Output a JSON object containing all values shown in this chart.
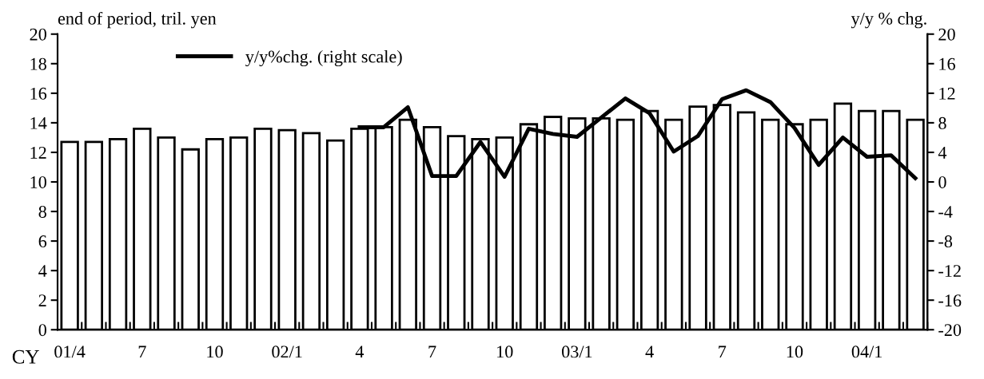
{
  "chart_data": {
    "type": "bar",
    "ylabel": "end of period, tril. yen",
    "y2label": "y/y % chg.",
    "annotations": [
      "CY"
    ],
    "categories": [
      "01/4",
      null,
      null,
      "7",
      null,
      null,
      "10",
      null,
      null,
      "02/1",
      null,
      null,
      "4",
      null,
      null,
      "7",
      null,
      null,
      "10",
      null,
      null,
      "03/1",
      null,
      null,
      "4",
      null,
      null,
      "7",
      null,
      null,
      "10",
      null,
      null,
      "04/1",
      null,
      null
    ],
    "series": [
      {
        "color": "#ffffff",
        "values": [
          12.7,
          12.7,
          12.9,
          13.6,
          13.0,
          12.2,
          12.9,
          13.0,
          13.6,
          13.5,
          13.3,
          12.8,
          13.6,
          13.7,
          14.2,
          13.7,
          13.1,
          12.9,
          13.0,
          13.9,
          14.4,
          14.3,
          14.3,
          14.2,
          14.8,
          14.2,
          15.1,
          15.2,
          14.7,
          14.2,
          13.9,
          14.2,
          15.3,
          14.8,
          14.8,
          14.2
        ]
      },
      {
        "type": "line",
        "name": "y/y%chg. (right scale)",
        "color": "#000000",
        "axis": "y2",
        "values": [
          null,
          null,
          null,
          null,
          null,
          null,
          null,
          null,
          null,
          null,
          null,
          null,
          7.4,
          7.4,
          10.1,
          0.8,
          0.8,
          5.4,
          0.7,
          7.2,
          6.5,
          6.1,
          8.7,
          11.3,
          9.3,
          4.1,
          6.2,
          11.2,
          12.4,
          10.8,
          7.3,
          2.3,
          6.0,
          3.4,
          3.6,
          0.5
        ]
      }
    ],
    "ylim": [
      0,
      20
    ],
    "yticks": [
      0,
      2,
      4,
      6,
      8,
      10,
      12,
      14,
      16,
      18,
      20
    ],
    "y2lim": [
      -20,
      20
    ],
    "y2ticks": [
      -20,
      -16,
      -12,
      -8,
      -4,
      0,
      4,
      8,
      12,
      16,
      20
    ],
    "grid": false,
    "legend": "top left",
    "marker": "none",
    "line_style": "solid"
  }
}
